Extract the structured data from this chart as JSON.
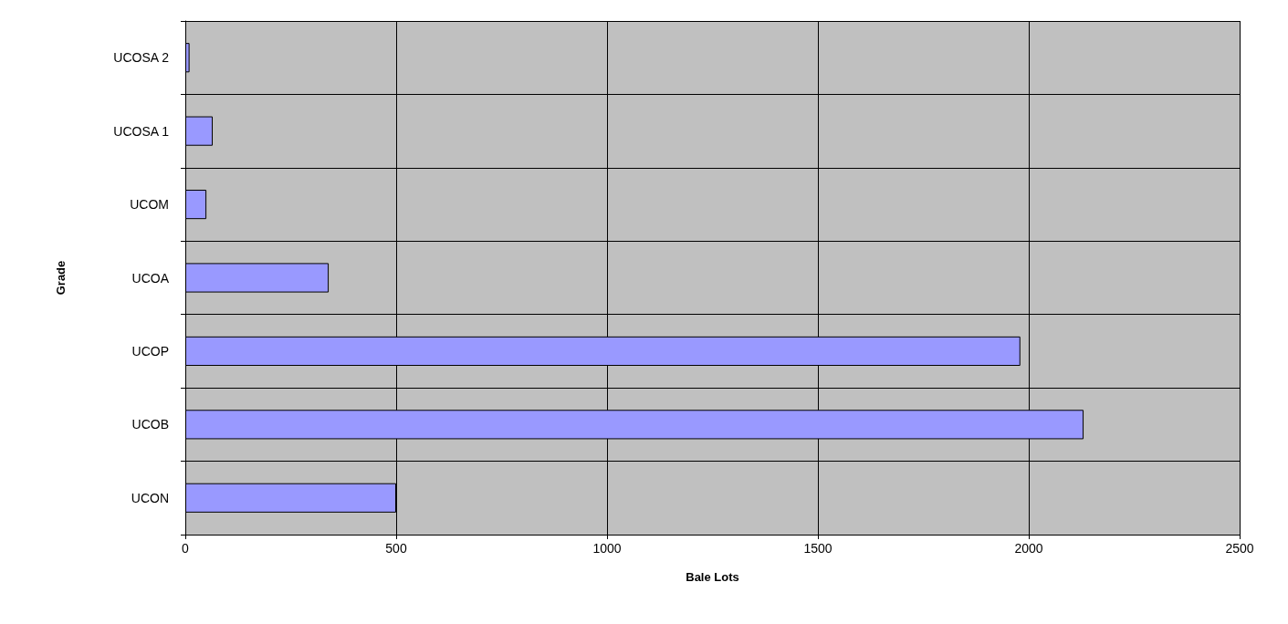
{
  "chart_data": {
    "type": "bar",
    "orientation": "horizontal",
    "xlabel": "Bale Lots",
    "ylabel": "Grade",
    "categories": [
      "UCOSA 2",
      "UCOSA 1",
      "UCOM",
      "UCOA",
      "UCOP",
      "UCOB",
      "UCON"
    ],
    "values": [
      10,
      65,
      50,
      340,
      1980,
      2130,
      500
    ],
    "color": "#9999ff",
    "xlim": [
      0,
      2500
    ],
    "xticks": [
      0,
      500,
      1000,
      1500,
      2000,
      2500
    ],
    "grid": true
  }
}
